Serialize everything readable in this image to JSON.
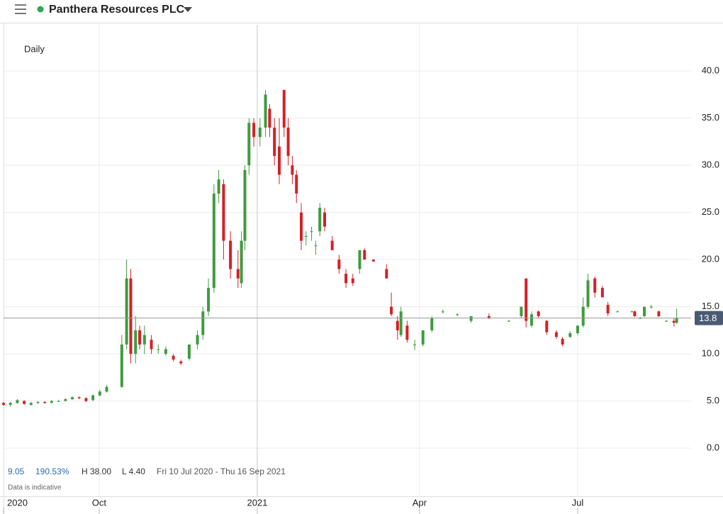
{
  "header": {
    "title": "Panthera Resources PLC"
  },
  "chart_data": {
    "type": "candlestick",
    "interval": "Daily",
    "stats": {
      "change": "9.05",
      "change_pct": "190.53%",
      "high": "H 38.00",
      "low": "L 4.40",
      "range": "Fri 10 Jul 2020 - Thu 16 Sep 2021"
    },
    "note": "Data is indicative",
    "up_color": "#3f9b3f",
    "down_color": "#d42027",
    "last_price": 13.8,
    "xlim": [
      0,
      100
    ],
    "xticks": [
      {
        "value": 0,
        "label": "2020"
      },
      {
        "value": 13.9,
        "label": "Oct"
      },
      {
        "value": 36.9,
        "label": "2021"
      },
      {
        "value": 60.5,
        "label": "Apr"
      },
      {
        "value": 83.5,
        "label": "Jul"
      }
    ],
    "ylim": [
      -5.1,
      44.9
    ],
    "yticks": [
      {
        "value": 0,
        "label": "0.0"
      },
      {
        "value": 5,
        "label": "5.0"
      },
      {
        "value": 10,
        "label": "10.0"
      },
      {
        "value": 15,
        "label": "15.0"
      },
      {
        "value": 20,
        "label": "20.0"
      },
      {
        "value": 25,
        "label": "25.0"
      },
      {
        "value": 30,
        "label": "30.0"
      },
      {
        "value": 35,
        "label": "35.0"
      },
      {
        "value": 40,
        "label": "40.0"
      }
    ],
    "grid": true,
    "candles": {
      "x": [
        0,
        1,
        2,
        3,
        4,
        5,
        6,
        7,
        8,
        9,
        10,
        11,
        12,
        13,
        14,
        15,
        17.2,
        17.9,
        18.5,
        19.2,
        19.8,
        20.5,
        21.5,
        22.5,
        23.6,
        24.7,
        25.8,
        27,
        28.2,
        29,
        29.8,
        30.6,
        31.3,
        32,
        33,
        34.1,
        34.6,
        35.1,
        35.7,
        36.4,
        37.3,
        38.1,
        38.7,
        39.4,
        40.1,
        40.8,
        41.4,
        42,
        42.6,
        43.3,
        44,
        44.8,
        45.4,
        46,
        46.7,
        47.8,
        48.8,
        49.8,
        50.8,
        51.8,
        52.5,
        53.8,
        55.7,
        56.4,
        57.3,
        57.8,
        58.7,
        59.8,
        61,
        62.3,
        63.9,
        66,
        68,
        70.6,
        73.5,
        75.3,
        76,
        76.8,
        77.8,
        79,
        80.4,
        81.3,
        82.4,
        83.5,
        84.3,
        85,
        86,
        87.1,
        87.9,
        89.3,
        91.4,
        91.8,
        92.6,
        93.2,
        94.2,
        95.3,
        96.4,
        97.5,
        97.9
      ],
      "open": [
        4.8,
        4.6,
        4.8,
        5.0,
        4.6,
        4.8,
        4.9,
        4.8,
        5.0,
        5.0,
        5.2,
        5.4,
        5.3,
        5.1,
        5.6,
        6.0,
        6.5,
        11,
        18,
        10,
        12.5,
        11,
        11.5,
        10.5,
        10,
        9.8,
        9.2,
        9.5,
        11,
        12,
        14.5,
        17,
        27,
        28,
        22,
        19,
        17.5,
        22,
        30,
        34.5,
        33,
        34,
        36,
        34,
        32,
        38,
        34,
        30,
        29,
        25,
        22.5,
        23,
        21.5,
        23,
        25,
        22,
        20,
        18.5,
        18,
        19,
        21,
        20,
        19,
        15,
        13.5,
        12,
        13,
        11,
        11,
        12.5,
        14.5,
        14.2,
        13.5,
        14,
        13.5,
        14,
        18,
        13,
        14.5,
        13.5,
        12.3,
        11.6,
        11.8,
        12.2,
        13,
        15,
        18,
        17,
        15.2,
        14.5,
        14.5,
        14.5,
        13.8,
        14,
        15,
        14.5,
        13.5,
        13.5,
        13.3
      ],
      "high": [
        4.9,
        4.9,
        5.2,
        5.1,
        4.9,
        5.0,
        5.0,
        5.1,
        5.1,
        5.3,
        5.5,
        5.5,
        5.4,
        5.7,
        6.2,
        6.7,
        12,
        20,
        19,
        14,
        13,
        13,
        12,
        11,
        10.8,
        10,
        9.4,
        11,
        12.5,
        15,
        18,
        28,
        29.5,
        28.5,
        23,
        21,
        23,
        30,
        35,
        35,
        35,
        38,
        36.5,
        35,
        35,
        38,
        35,
        31,
        29.5,
        26,
        23,
        23.5,
        22,
        26,
        25.5,
        22.5,
        20.5,
        19,
        18.5,
        21,
        21.2,
        20,
        19.5,
        16.5,
        14,
        15,
        13.5,
        11.5,
        12.5,
        14,
        14.7,
        14.3,
        14,
        14.3,
        13.6,
        15,
        18,
        14.5,
        14.6,
        13.6,
        12.5,
        11.8,
        12.4,
        13,
        16,
        18.5,
        18.2,
        17.2,
        15.5,
        14.6,
        14.6,
        14.6,
        13.9,
        15,
        15.2,
        14.6,
        13.6,
        13.8,
        14.8
      ],
      "low": [
        4.5,
        4.4,
        4.7,
        4.6,
        4.5,
        4.7,
        4.7,
        4.8,
        4.9,
        5.0,
        5.1,
        5.2,
        4.9,
        5.0,
        5.5,
        5.9,
        6.4,
        10.5,
        9,
        9,
        10.5,
        10,
        10,
        10,
        9.8,
        9.2,
        8.8,
        9.3,
        10.5,
        11.5,
        14,
        16.5,
        26,
        20,
        18,
        17,
        17,
        21,
        29,
        32,
        32,
        33,
        33,
        30,
        28,
        33,
        30,
        28,
        26,
        21,
        21.5,
        22,
        20.5,
        22.5,
        23,
        21,
        18.5,
        17,
        17.2,
        18.5,
        20,
        19.8,
        18,
        14,
        11.5,
        11.8,
        11.2,
        10.4,
        10.8,
        12.3,
        14.3,
        14,
        13.3,
        13.7,
        13.4,
        13.8,
        12.8,
        12.8,
        13.8,
        12,
        11.6,
        10.8,
        11.7,
        12,
        12.8,
        14.8,
        16,
        16,
        14,
        14.4,
        14.4,
        13.9,
        13.7,
        13.9,
        14.8,
        13.9,
        13.4,
        12.9,
        13.2
      ],
      "close": [
        4.6,
        4.8,
        5.1,
        4.7,
        4.8,
        4.9,
        4.8,
        5.0,
        5.0,
        5.2,
        5.4,
        5.3,
        5.0,
        5.6,
        6.0,
        6.5,
        11,
        18,
        10,
        12.5,
        11,
        12,
        10.5,
        10.5,
        10.5,
        9.4,
        9.0,
        11,
        12,
        14.5,
        17,
        27,
        28.5,
        22,
        19,
        18,
        22,
        29.5,
        34.5,
        33,
        34,
        37.5,
        34,
        31,
        29,
        34,
        31,
        29,
        27,
        22,
        22.5,
        23,
        21.5,
        25.5,
        23.5,
        21,
        19,
        17.5,
        17.5,
        21,
        20,
        19.8,
        18,
        14.2,
        12.5,
        14.5,
        11.5,
        11,
        12.5,
        13.8,
        14.5,
        14.2,
        14,
        13.8,
        13.5,
        15,
        13.5,
        14.2,
        14,
        12.3,
        11.8,
        11,
        12.2,
        13,
        15,
        17.8,
        16.5,
        16,
        14.3,
        14.5,
        14.5,
        14,
        13.8,
        15,
        15,
        14,
        13.5,
        13.3,
        13.8
      ]
    }
  }
}
